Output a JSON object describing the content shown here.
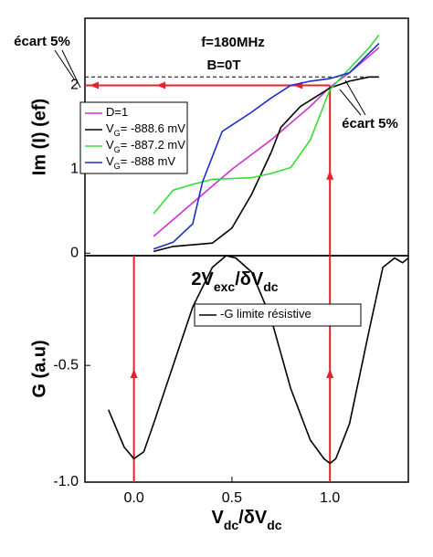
{
  "chart_data": [
    {
      "type": "line",
      "ylabel": "Im (I) (ef)",
      "xlim": [
        -0.25,
        1.4
      ],
      "ylim": [
        -0.03,
        2.8
      ],
      "yticks": [
        0,
        1,
        2
      ],
      "legend": "upper left",
      "annotations": [
        "f=180MHz",
        "B=0T",
        "écart 5%",
        "écart 5%"
      ],
      "guides": {
        "color": "#e8202a",
        "x": [
          1.0
        ],
        "y": [
          2
        ]
      },
      "ref_line": 2.1,
      "series": [
        {
          "name": [
            {
              "text": "D=1"
            }
          ],
          "color": "#cc33cc",
          "x": [
            0.1,
            0.3,
            0.5,
            0.7,
            0.9,
            1.0,
            1.1,
            1.25
          ],
          "values": [
            0.2,
            0.6,
            1.0,
            1.35,
            1.75,
            1.98,
            2.15,
            2.45
          ]
        },
        {
          "name": [
            {
              "text": "V"
            },
            {
              "sub": "G"
            },
            {
              "text": "= -888.6 mV"
            }
          ],
          "color": "#000000",
          "x": [
            0.1,
            0.2,
            0.4,
            0.5,
            0.6,
            0.7,
            0.75,
            0.85,
            1.0,
            1.1,
            1.2,
            1.25
          ],
          "values": [
            0.02,
            0.08,
            0.12,
            0.3,
            0.7,
            1.2,
            1.5,
            1.75,
            1.97,
            2.05,
            2.1,
            2.1
          ]
        },
        {
          "name": [
            {
              "text": "V"
            },
            {
              "sub": "G"
            },
            {
              "text": "= -887.2 mV"
            }
          ],
          "color": "#33dd33",
          "x": [
            0.1,
            0.2,
            0.3,
            0.4,
            0.6,
            0.7,
            0.8,
            0.9,
            1.0,
            1.1,
            1.2,
            1.25
          ],
          "values": [
            0.47,
            0.75,
            0.82,
            0.88,
            0.9,
            0.95,
            1.02,
            1.35,
            1.95,
            2.2,
            2.45,
            2.6
          ]
        },
        {
          "name": [
            {
              "text": "V"
            },
            {
              "sub": "G"
            },
            {
              "text": "= -888 mV"
            }
          ],
          "color": "#1a2fcc",
          "x": [
            0.1,
            0.2,
            0.3,
            0.35,
            0.45,
            0.6,
            0.7,
            0.8,
            0.9,
            1.0,
            1.1,
            1.25
          ],
          "values": [
            0.05,
            0.13,
            0.35,
            0.85,
            1.45,
            1.68,
            1.85,
            2.0,
            2.05,
            2.08,
            2.15,
            2.5
          ]
        }
      ]
    },
    {
      "type": "line",
      "ylabel": "G (a.u)",
      "xlabel": [
        {
          "text": "V"
        },
        {
          "sub": "dc"
        },
        {
          "text": "/δV"
        },
        {
          "sub": "dc"
        }
      ],
      "annotation": [
        {
          "text": "2V"
        },
        {
          "sub": "exc"
        },
        {
          "text": "/δV"
        },
        {
          "sub": "dc"
        }
      ],
      "xlim": [
        -0.25,
        1.4
      ],
      "ylim": [
        -1.0,
        -0.03
      ],
      "xticks": [
        {
          "value": 0,
          "label": "0.0"
        },
        0.5,
        {
          "value": 1,
          "label": "1.0"
        }
      ],
      "yticks": [
        {
          "value": -1,
          "label": "-1.0"
        },
        -0.5
      ],
      "legend": "upper center",
      "guides": {
        "color": "#e8202a",
        "x": [
          0.0,
          1.0
        ],
        "y": []
      },
      "series": [
        {
          "name": [
            {
              "text": "-G limite résistive"
            }
          ],
          "color": "#000000",
          "x": [
            -0.13,
            -0.1,
            -0.05,
            0.0,
            0.05,
            0.1,
            0.2,
            0.3,
            0.4,
            0.47,
            0.52,
            0.6,
            0.7,
            0.8,
            0.9,
            0.97,
            1.0,
            1.03,
            1.1,
            1.2,
            1.27,
            1.33,
            1.37,
            1.4
          ],
          "values": [
            -0.69,
            -0.75,
            -0.85,
            -0.9,
            -0.87,
            -0.75,
            -0.5,
            -0.25,
            -0.08,
            -0.03,
            -0.04,
            -0.1,
            -0.3,
            -0.6,
            -0.82,
            -0.9,
            -0.92,
            -0.9,
            -0.75,
            -0.35,
            -0.08,
            -0.04,
            -0.06,
            -0.04
          ]
        }
      ]
    }
  ]
}
